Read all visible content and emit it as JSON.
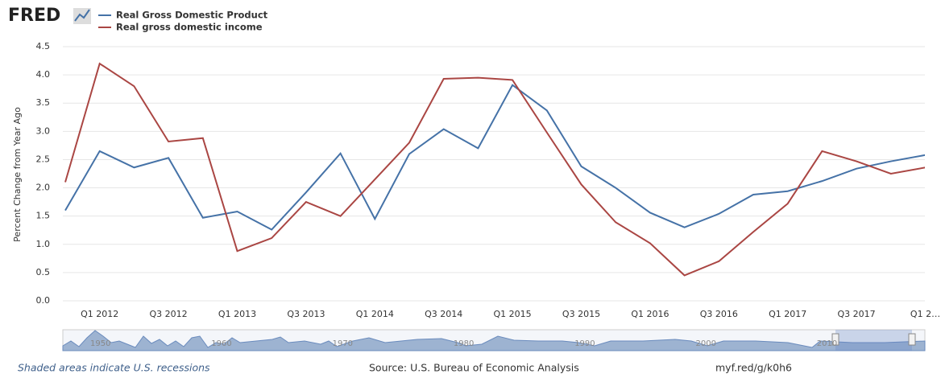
{
  "logo": "FRED",
  "chart_data": {
    "type": "line",
    "y_label": "Percent Change from Year Ago",
    "categories": [
      null,
      "Q1 2012",
      null,
      "Q3 2012",
      null,
      "Q1 2013",
      null,
      "Q3 2013",
      null,
      "Q1 2014",
      null,
      "Q3 2014",
      null,
      "Q1 2015",
      null,
      "Q3 2015",
      null,
      "Q1 2016",
      null,
      "Q3 2016",
      null,
      "Q1 2017",
      null,
      "Q3 2017",
      null,
      "Q1 2…"
    ],
    "series": [
      {
        "name": "Real Gross Domestic Product",
        "color": "#4572a7",
        "values": [
          1.6,
          2.65,
          2.36,
          2.53,
          1.47,
          1.58,
          1.26,
          1.92,
          2.61,
          1.45,
          2.6,
          3.04,
          2.7,
          3.82,
          3.37,
          2.38,
          2.0,
          1.56,
          1.3,
          1.54,
          1.88,
          1.94,
          2.12,
          2.34,
          2.47,
          2.58
        ]
      },
      {
        "name": "Real gross domestic income",
        "color": "#aa4643",
        "values": [
          2.1,
          4.2,
          3.8,
          2.82,
          2.88,
          0.88,
          1.11,
          1.75,
          1.5,
          2.15,
          2.8,
          3.93,
          3.95,
          3.91,
          2.98,
          2.06,
          1.39,
          1.02,
          0.45,
          0.7,
          1.22,
          1.72,
          2.65,
          2.47,
          2.25,
          2.36
        ]
      }
    ],
    "ylim": [
      0,
      4.5
    ],
    "yticks": [
      {
        "value": 0,
        "label": "0.0"
      },
      0.5,
      {
        "value": 1,
        "label": "1.0"
      },
      1.5,
      {
        "value": 2,
        "label": "2.0"
      },
      2.5,
      {
        "value": 3,
        "label": "3.0"
      },
      3.5,
      {
        "value": 4,
        "label": "4.0"
      },
      4.5
    ],
    "grid": true
  },
  "navigator": {
    "labels": [
      "1950",
      "1960",
      "1970",
      "1980",
      "1990",
      "2000",
      "2010"
    ]
  },
  "footer": {
    "recessions": "Shaded areas indicate U.S. recessions",
    "source": "Source: U.S. Bureau of Economic Analysis",
    "link": "myf.red/g/k0h6"
  }
}
